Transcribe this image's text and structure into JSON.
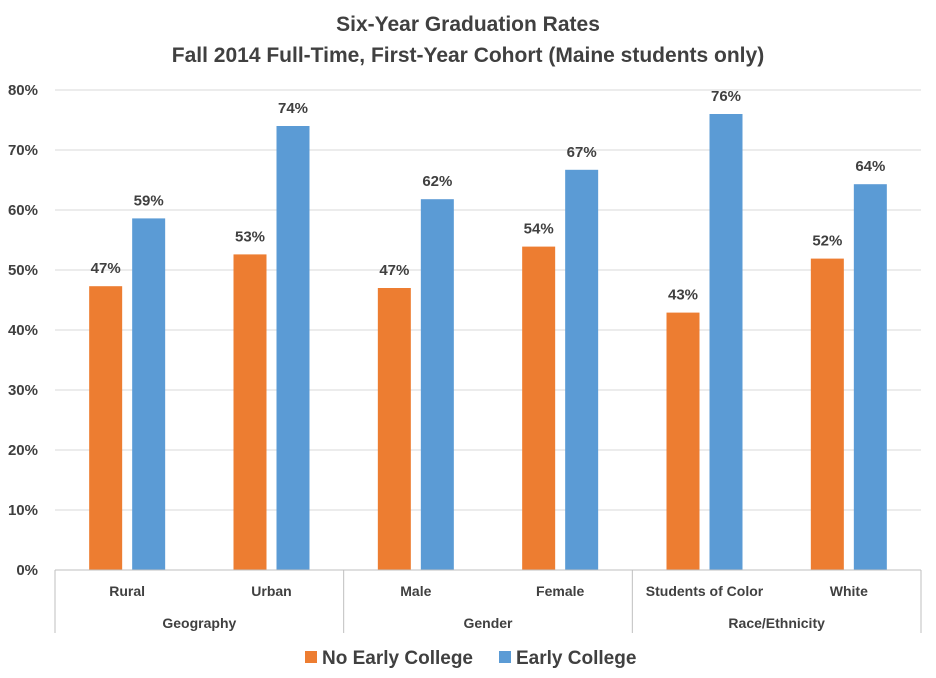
{
  "chart_data": {
    "type": "bar",
    "title": "Six-Year Graduation Rates",
    "subtitle": "Fall 2014 Full-Time, First-Year Cohort (Maine students only)",
    "categories": [
      "Rural",
      "Urban",
      "Male",
      "Female",
      "Students of Color",
      "White"
    ],
    "groups": [
      {
        "label": "Geography",
        "categories": [
          "Rural",
          "Urban"
        ]
      },
      {
        "label": "Gender",
        "categories": [
          "Male",
          "Female"
        ]
      },
      {
        "label": "Race/Ethnicity",
        "categories": [
          "Students of Color",
          "White"
        ]
      }
    ],
    "series": [
      {
        "name": "No Early College",
        "color": "#ED7D31",
        "values": [
          47.3,
          52.6,
          47.0,
          53.9,
          42.9,
          51.9
        ],
        "labels": [
          "47%",
          "53%",
          "47%",
          "54%",
          "43%",
          "52%"
        ]
      },
      {
        "name": "Early College",
        "color": "#5B9BD5",
        "values": [
          58.6,
          74.0,
          61.8,
          66.7,
          76.0,
          64.3
        ],
        "labels": [
          "59%",
          "74%",
          "62%",
          "67%",
          "76%",
          "64%"
        ]
      }
    ],
    "yticks": [
      "0%",
      "10%",
      "20%",
      "30%",
      "40%",
      "50%",
      "60%",
      "70%",
      "80%"
    ],
    "ylim": [
      0,
      80
    ],
    "grid": true,
    "legend_position": "bottom"
  }
}
